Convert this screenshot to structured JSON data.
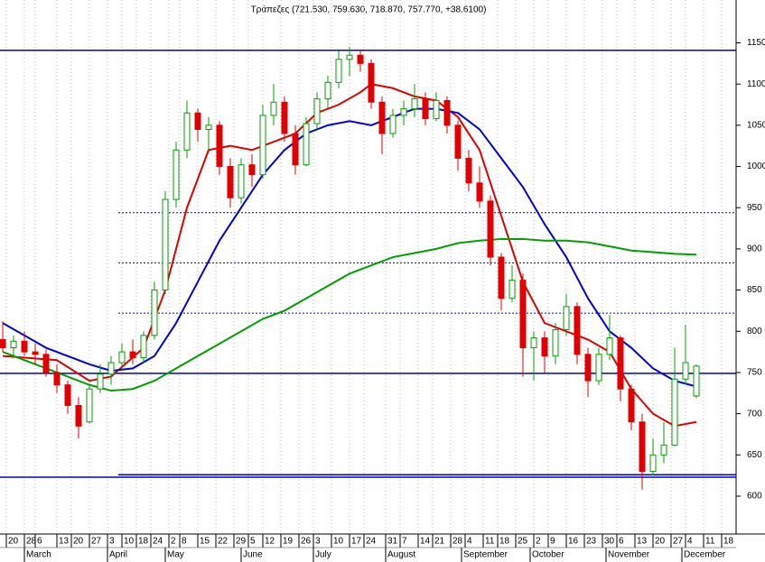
{
  "chart_data": {
    "type": "candlestick",
    "title": "Τράπεζες (721.530, 759.630, 718.870, 757.770, +38.6100)",
    "x": [
      0,
      3,
      6,
      9,
      12,
      15,
      18,
      21,
      24,
      27,
      30,
      33,
      36,
      39,
      42,
      45,
      48,
      51,
      54,
      57,
      60,
      63,
      66,
      69,
      72,
      75,
      78,
      81,
      84,
      87,
      90,
      93,
      96,
      99,
      102,
      105,
      108,
      111,
      114,
      117,
      120,
      123,
      126,
      129,
      132,
      135,
      138,
      141,
      144,
      147,
      150,
      153,
      156,
      159,
      162,
      165,
      168,
      171,
      174,
      177,
      180,
      183,
      186,
      189,
      192
    ],
    "open": [
      790,
      780,
      788,
      775,
      772,
      750,
      735,
      710,
      690,
      730,
      748,
      762,
      775,
      768,
      795,
      850,
      960,
      1020,
      1065,
      1045,
      1050,
      1000,
      962,
      1002,
      990,
      1062,
      1078,
      1040,
      1002,
      1052,
      1082,
      1102,
      1130,
      1135,
      1125,
      1078,
      1040,
      1062,
      1070,
      1082,
      1058,
      1080,
      1050,
      1010,
      980,
      958,
      890,
      840,
      862,
      780,
      792,
      770,
      802,
      830,
      772,
      740,
      772,
      792,
      730,
      690,
      630,
      650,
      662,
      742,
      721.53
    ],
    "high": [
      812,
      795,
      800,
      785,
      778,
      760,
      740,
      720,
      735,
      760,
      770,
      785,
      790,
      800,
      860,
      970,
      1030,
      1080,
      1070,
      1060,
      1055,
      1010,
      1010,
      1015,
      1075,
      1100,
      1085,
      1050,
      1060,
      1090,
      1110,
      1140,
      1145,
      1142,
      1130,
      1085,
      1070,
      1080,
      1100,
      1090,
      1090,
      1085,
      1055,
      1020,
      1000,
      965,
      895,
      880,
      870,
      800,
      800,
      810,
      845,
      835,
      780,
      780,
      820,
      795,
      735,
      700,
      670,
      690,
      780,
      808,
      759.63
    ],
    "low": [
      775,
      770,
      770,
      760,
      745,
      725,
      700,
      670,
      688,
      725,
      735,
      755,
      760,
      762,
      790,
      845,
      950,
      1010,
      1030,
      1020,
      990,
      950,
      955,
      975,
      985,
      1050,
      1030,
      990,
      1000,
      1045,
      1070,
      1095,
      1110,
      1115,
      1070,
      1015,
      1035,
      1050,
      1060,
      1050,
      1055,
      1040,
      995,
      970,
      950,
      880,
      825,
      835,
      745,
      740,
      750,
      760,
      795,
      760,
      720,
      735,
      765,
      715,
      680,
      608,
      625,
      640,
      660,
      735,
      718.87
    ],
    "close": [
      780,
      788,
      775,
      772,
      750,
      735,
      710,
      685,
      730,
      748,
      762,
      775,
      768,
      795,
      850,
      960,
      1020,
      1065,
      1045,
      1050,
      1000,
      962,
      1002,
      990,
      1062,
      1078,
      1040,
      1002,
      1052,
      1082,
      1102,
      1130,
      1135,
      1125,
      1078,
      1040,
      1062,
      1070,
      1082,
      1058,
      1080,
      1050,
      1010,
      980,
      958,
      890,
      840,
      862,
      780,
      792,
      770,
      802,
      830,
      772,
      740,
      772,
      792,
      730,
      690,
      630,
      650,
      662,
      742,
      762,
      757.77
    ],
    "up_color": "#00a000",
    "down_color": "#e00000",
    "series": [
      {
        "color": "#e00000",
        "x": [
          0,
          15,
          24,
          30,
          39,
          45,
          51,
          57,
          63,
          69,
          75,
          81,
          87,
          93,
          99,
          102,
          108,
          114,
          120,
          126,
          132,
          138,
          144,
          150,
          156,
          162,
          168,
          174,
          180,
          186,
          192
        ],
        "values": [
          770,
          765,
          740,
          745,
          780,
          850,
          950,
          1020,
          1025,
          1020,
          1030,
          1040,
          1065,
          1075,
          1090,
          1100,
          1095,
          1085,
          1080,
          1060,
          1020,
          940,
          860,
          810,
          800,
          790,
          775,
          730,
          700,
          685,
          690
        ]
      },
      {
        "color": "#0000e0",
        "x": [
          0,
          12,
          24,
          30,
          36,
          42,
          48,
          54,
          60,
          66,
          72,
          78,
          84,
          90,
          96,
          102,
          108,
          114,
          120,
          126,
          132,
          138,
          144,
          150,
          156,
          162,
          168,
          174,
          180,
          186,
          192
        ],
        "values": [
          810,
          780,
          760,
          752,
          755,
          770,
          810,
          860,
          910,
          950,
          990,
          1020,
          1040,
          1050,
          1055,
          1050,
          1060,
          1070,
          1070,
          1065,
          1045,
          1010,
          975,
          930,
          890,
          840,
          800,
          780,
          755,
          740,
          733
        ]
      },
      {
        "color": "#00a000",
        "x": [
          0,
          12,
          24,
          30,
          36,
          42,
          48,
          54,
          60,
          66,
          72,
          78,
          84,
          90,
          96,
          102,
          108,
          114,
          120,
          126,
          132,
          138,
          144,
          150,
          156,
          162,
          168,
          174,
          180,
          186,
          192
        ],
        "values": [
          775,
          755,
          735,
          728,
          730,
          740,
          755,
          770,
          785,
          800,
          815,
          825,
          840,
          855,
          870,
          880,
          890,
          895,
          900,
          907,
          910,
          912,
          912,
          910,
          910,
          908,
          903,
          898,
          896,
          894,
          893
        ]
      }
    ],
    "hlines": [
      {
        "value": 1141,
        "start": -0.75,
        "style": "solid"
      },
      {
        "value": 944,
        "start": 32,
        "style": "dotted"
      },
      {
        "value": 883,
        "start": 32,
        "style": "dotted"
      },
      {
        "value": 822,
        "start": 32,
        "style": "dotted"
      },
      {
        "value": 749,
        "start": -0.75,
        "style": "solid"
      },
      {
        "value": 626,
        "start": 32,
        "style": "solid"
      },
      {
        "value": 623,
        "start": -0.75,
        "style": "solid"
      }
    ],
    "xlim": [
      -0.75,
      203
    ],
    "ylim": [
      554,
      1202
    ],
    "yticks": [
      600,
      650,
      700,
      750,
      800,
      850,
      900,
      950,
      1000,
      1050,
      1100,
      1150
    ],
    "xticks": [
      {
        "value": 1,
        "label": "20"
      },
      {
        "value": 6,
        "label": "28"
      },
      {
        "value": 9,
        "label": "6"
      },
      {
        "value": 15,
        "label": "13"
      },
      {
        "value": 19,
        "label": "20"
      },
      {
        "value": 24,
        "label": "27"
      },
      {
        "value": 29,
        "label": "3"
      },
      {
        "value": 33,
        "label": "10"
      },
      {
        "value": 37,
        "label": "18"
      },
      {
        "value": 41,
        "label": "24"
      },
      {
        "value": 46,
        "label": "2"
      },
      {
        "value": 49,
        "label": "8"
      },
      {
        "value": 54,
        "label": "15"
      },
      {
        "value": 59,
        "label": "22"
      },
      {
        "value": 64,
        "label": "29"
      },
      {
        "value": 68,
        "label": "5"
      },
      {
        "value": 72,
        "label": "12"
      },
      {
        "value": 77,
        "label": "19"
      },
      {
        "value": 82,
        "label": "26"
      },
      {
        "value": 86,
        "label": "3"
      },
      {
        "value": 91,
        "label": "10"
      },
      {
        "value": 96,
        "label": "17"
      },
      {
        "value": 100,
        "label": "24"
      },
      {
        "value": 106,
        "label": "31"
      },
      {
        "value": 110,
        "label": "7"
      },
      {
        "value": 115,
        "label": "14"
      },
      {
        "value": 119,
        "label": "21"
      },
      {
        "value": 124,
        "label": "28"
      },
      {
        "value": 128,
        "label": "4"
      },
      {
        "value": 133,
        "label": "11"
      },
      {
        "value": 137,
        "label": "18"
      },
      {
        "value": 142,
        "label": "25"
      },
      {
        "value": 147,
        "label": "2"
      },
      {
        "value": 151,
        "label": "9"
      },
      {
        "value": 156,
        "label": "16"
      },
      {
        "value": 161,
        "label": "23"
      },
      {
        "value": 166,
        "label": "30"
      },
      {
        "value": 170,
        "label": "6"
      },
      {
        "value": 175,
        "label": "13"
      },
      {
        "value": 180,
        "label": "20"
      },
      {
        "value": 185,
        "label": "27"
      },
      {
        "value": 189,
        "label": "4"
      },
      {
        "value": 194,
        "label": "11"
      },
      {
        "value": 199,
        "label": "18"
      }
    ],
    "month_ticks": [
      {
        "value": 6,
        "label": "March"
      },
      {
        "value": 29,
        "label": "April"
      },
      {
        "value": 45,
        "label": "May"
      },
      {
        "value": 66,
        "label": "June"
      },
      {
        "value": 86,
        "label": "July"
      },
      {
        "value": 106,
        "label": "August"
      },
      {
        "value": 127,
        "label": "September"
      },
      {
        "value": 146,
        "label": "October"
      },
      {
        "value": 167,
        "label": "November"
      },
      {
        "value": 188,
        "label": "December"
      }
    ],
    "grid": true
  }
}
